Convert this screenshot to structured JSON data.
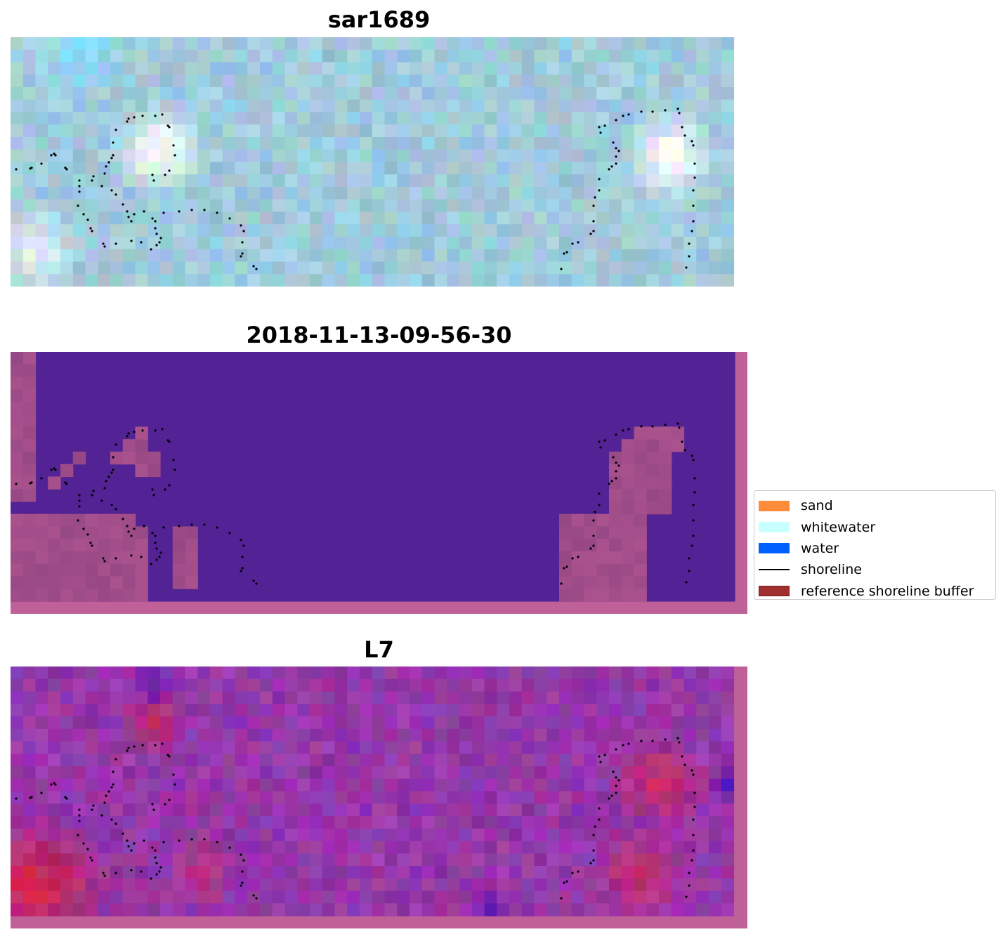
{
  "panels": [
    {
      "title": "sar1689",
      "kind": "sar"
    },
    {
      "title": "2018-11-13-09-56-30",
      "kind": "classification"
    },
    {
      "title": "L7",
      "kind": "optical"
    }
  ],
  "legend": {
    "items": [
      {
        "label": "sand",
        "color": "#ff8c3a",
        "type": "patch"
      },
      {
        "label": "whitewater",
        "color": "#c8ffff",
        "type": "patch"
      },
      {
        "label": "water",
        "color": "#0060ff",
        "type": "patch"
      },
      {
        "label": "shoreline",
        "color": "#000000",
        "type": "line"
      },
      {
        "label": "reference shoreline buffer",
        "color": "#a03030",
        "type": "patch",
        "edge": "#7a1e1e"
      }
    ]
  },
  "colors": {
    "buffer_pink": "#c06098",
    "water_purple": "#532396",
    "sand_pink": "#9a4c88"
  }
}
